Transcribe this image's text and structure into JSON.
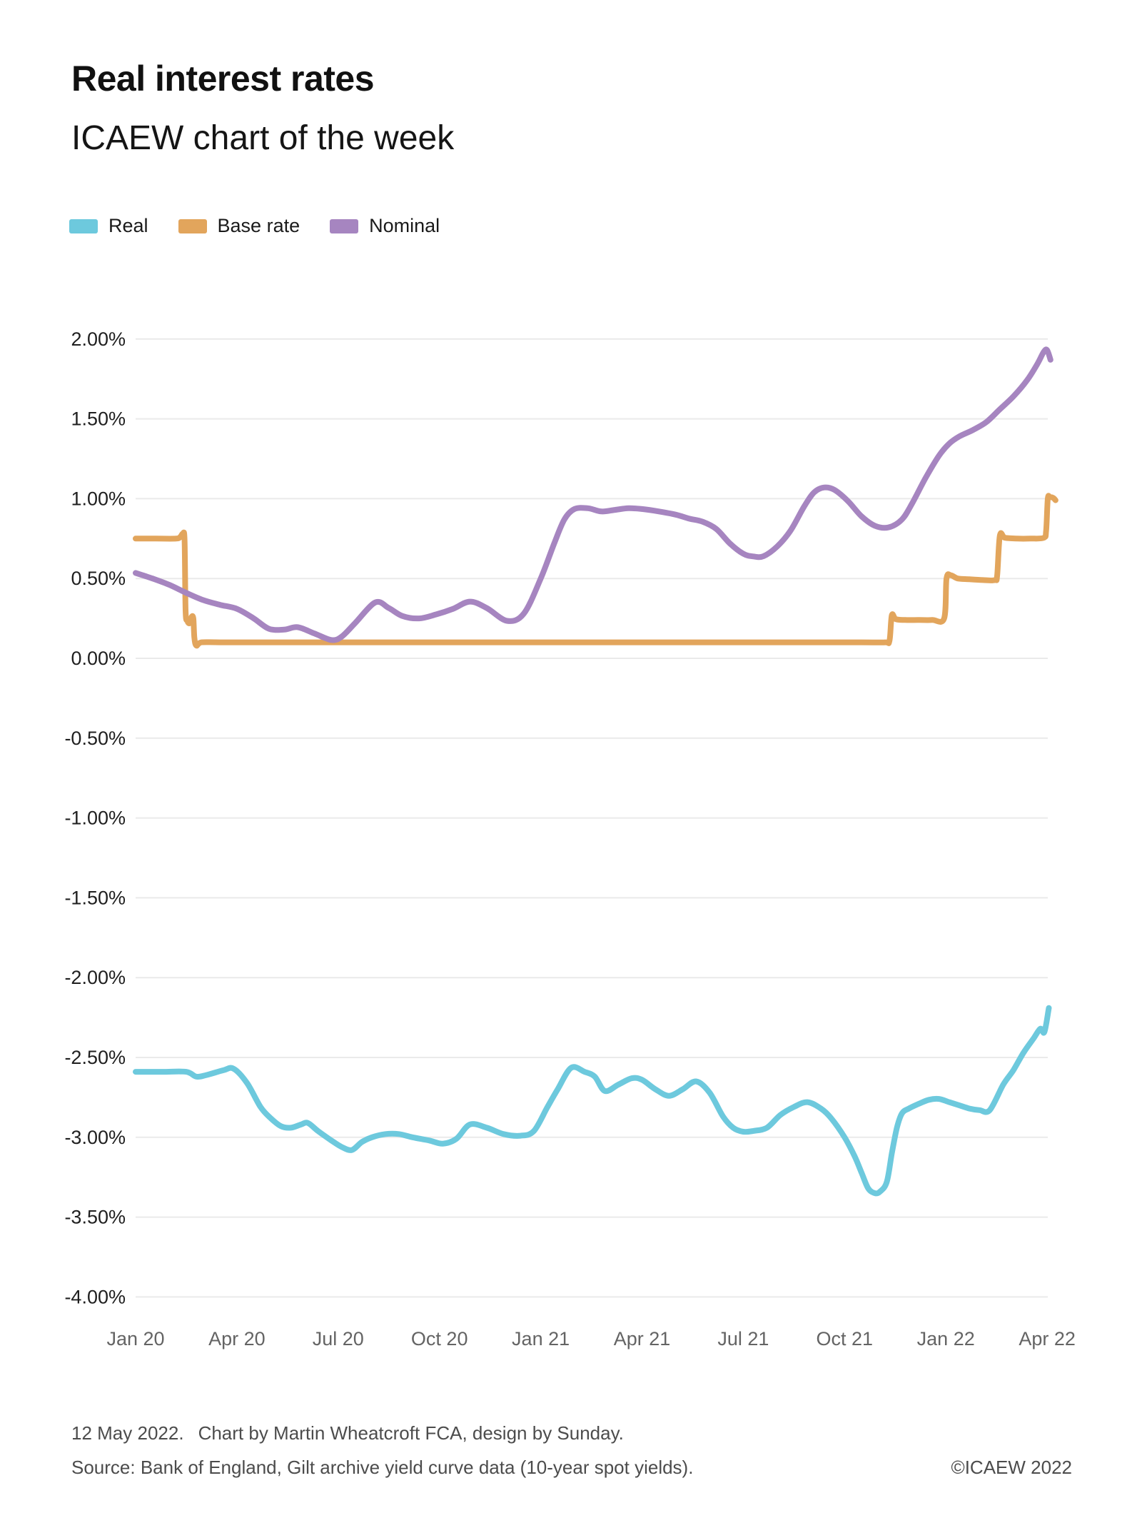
{
  "header": {
    "title": "Real interest rates",
    "subtitle": "ICAEW chart of the week"
  },
  "legend": {
    "items": [
      {
        "label": "Real",
        "color": "#6dc9dd"
      },
      {
        "label": "Base rate",
        "color": "#e2a55c"
      },
      {
        "label": "Nominal",
        "color": "#a685c0"
      }
    ]
  },
  "chart_data": {
    "type": "line",
    "title": "Real interest rates",
    "subtitle": "ICAEW chart of the week",
    "x_unit": "months since Jan 2020",
    "xlim": [
      0,
      27.35
    ],
    "ylim": [
      -4.0,
      2.0
    ],
    "grid": "horizontal",
    "legend_position": "top-left",
    "x_tick_positions": [
      0,
      3,
      6,
      9,
      12,
      15,
      18,
      21,
      24,
      27
    ],
    "x_tick_labels": [
      "Jan 20",
      "Apr 20",
      "Jul 20",
      "Oct 20",
      "Jan 21",
      "Apr 21",
      "Jul 21",
      "Oct 21",
      "Jan 22",
      "Apr 22"
    ],
    "y_tick_values": [
      2.0,
      1.5,
      1.0,
      0.5,
      0.0,
      -0.5,
      -1.0,
      -1.5,
      -2.0,
      -2.5,
      -3.0,
      -3.5,
      -4.0
    ],
    "y_tick_labels": [
      "2.00%",
      "1.50%",
      "1.00%",
      "0.50%",
      "0.00%",
      "-0.50%",
      "-1.00%",
      "-1.50%",
      "-2.00%",
      "-2.50%",
      "-3.00%",
      "-3.50%",
      "-4.00%"
    ],
    "series": [
      {
        "name": "Real",
        "color": "#6dc9dd",
        "points": [
          [
            0,
            -2.59
          ],
          [
            0.8,
            -2.59
          ],
          [
            1.5,
            -2.59
          ],
          [
            1.8,
            -2.62
          ],
          [
            2.1,
            -2.61
          ],
          [
            2.6,
            -2.58
          ],
          [
            2.9,
            -2.57
          ],
          [
            3.3,
            -2.66
          ],
          [
            3.7,
            -2.81
          ],
          [
            4.0,
            -2.88
          ],
          [
            4.3,
            -2.93
          ],
          [
            4.6,
            -2.94
          ],
          [
            4.9,
            -2.92
          ],
          [
            5.1,
            -2.91
          ],
          [
            5.4,
            -2.96
          ],
          [
            5.8,
            -3.02
          ],
          [
            6.1,
            -3.06
          ],
          [
            6.4,
            -3.08
          ],
          [
            6.7,
            -3.03
          ],
          [
            7.0,
            -3.0
          ],
          [
            7.4,
            -2.98
          ],
          [
            7.8,
            -2.98
          ],
          [
            8.2,
            -3.0
          ],
          [
            8.7,
            -3.02
          ],
          [
            9.1,
            -3.04
          ],
          [
            9.5,
            -3.01
          ],
          [
            9.9,
            -2.92
          ],
          [
            10.4,
            -2.94
          ],
          [
            10.9,
            -2.98
          ],
          [
            11.4,
            -2.99
          ],
          [
            11.8,
            -2.96
          ],
          [
            12.2,
            -2.81
          ],
          [
            12.5,
            -2.7
          ],
          [
            12.9,
            -2.565
          ],
          [
            13.3,
            -2.59
          ],
          [
            13.6,
            -2.62
          ],
          [
            13.9,
            -2.71
          ],
          [
            14.3,
            -2.67
          ],
          [
            14.7,
            -2.63
          ],
          [
            15.0,
            -2.64
          ],
          [
            15.4,
            -2.7
          ],
          [
            15.8,
            -2.74
          ],
          [
            16.2,
            -2.7
          ],
          [
            16.6,
            -2.65
          ],
          [
            17.0,
            -2.72
          ],
          [
            17.4,
            -2.87
          ],
          [
            17.7,
            -2.94
          ],
          [
            18.0,
            -2.965
          ],
          [
            18.3,
            -2.96
          ],
          [
            18.7,
            -2.94
          ],
          [
            19.1,
            -2.86
          ],
          [
            19.5,
            -2.81
          ],
          [
            19.9,
            -2.78
          ],
          [
            20.3,
            -2.82
          ],
          [
            20.6,
            -2.88
          ],
          [
            21.0,
            -3.0
          ],
          [
            21.3,
            -3.12
          ],
          [
            21.5,
            -3.22
          ],
          [
            21.7,
            -3.32
          ],
          [
            21.9,
            -3.35
          ],
          [
            22.05,
            -3.34
          ],
          [
            22.25,
            -3.28
          ],
          [
            22.4,
            -3.1
          ],
          [
            22.55,
            -2.94
          ],
          [
            22.7,
            -2.85
          ],
          [
            22.9,
            -2.82
          ],
          [
            23.2,
            -2.79
          ],
          [
            23.5,
            -2.765
          ],
          [
            23.8,
            -2.76
          ],
          [
            24.1,
            -2.78
          ],
          [
            24.4,
            -2.8
          ],
          [
            24.7,
            -2.82
          ],
          [
            25.0,
            -2.83
          ],
          [
            25.3,
            -2.83
          ],
          [
            25.7,
            -2.67
          ],
          [
            26.0,
            -2.58
          ],
          [
            26.3,
            -2.47
          ],
          [
            26.6,
            -2.38
          ],
          [
            26.8,
            -2.32
          ],
          [
            26.92,
            -2.34
          ],
          [
            27.05,
            -2.19
          ]
        ]
      },
      {
        "name": "Base rate",
        "color": "#e2a55c",
        "points": [
          [
            0,
            0.75
          ],
          [
            0.6,
            0.75
          ],
          [
            1.2,
            0.75
          ],
          [
            1.32,
            0.76
          ],
          [
            1.4,
            0.78
          ],
          [
            1.45,
            0.74
          ],
          [
            1.48,
            0.3
          ],
          [
            1.53,
            0.235
          ],
          [
            1.6,
            0.22
          ],
          [
            1.66,
            0.26
          ],
          [
            1.71,
            0.25
          ],
          [
            1.74,
            0.13
          ],
          [
            1.8,
            0.08
          ],
          [
            1.95,
            0.1
          ],
          [
            2.5,
            0.1
          ],
          [
            4,
            0.1
          ],
          [
            6,
            0.1
          ],
          [
            8,
            0.1
          ],
          [
            10,
            0.1
          ],
          [
            12,
            0.1
          ],
          [
            14,
            0.1
          ],
          [
            16,
            0.1
          ],
          [
            18,
            0.1
          ],
          [
            20,
            0.1
          ],
          [
            21.5,
            0.1
          ],
          [
            22.2,
            0.1
          ],
          [
            22.33,
            0.11
          ],
          [
            22.4,
            0.27
          ],
          [
            22.52,
            0.245
          ],
          [
            22.8,
            0.24
          ],
          [
            23.2,
            0.24
          ],
          [
            23.6,
            0.24
          ],
          [
            23.95,
            0.25
          ],
          [
            24.02,
            0.5
          ],
          [
            24.15,
            0.52
          ],
          [
            24.35,
            0.5
          ],
          [
            24.7,
            0.495
          ],
          [
            25.1,
            0.49
          ],
          [
            25.45,
            0.49
          ],
          [
            25.52,
            0.52
          ],
          [
            25.6,
            0.77
          ],
          [
            25.75,
            0.755
          ],
          [
            26.1,
            0.75
          ],
          [
            26.5,
            0.75
          ],
          [
            26.9,
            0.755
          ],
          [
            26.97,
            0.8
          ],
          [
            27.02,
            1.0
          ],
          [
            27.08,
            1.01
          ],
          [
            27.18,
            1.005
          ],
          [
            27.25,
            0.99
          ]
        ]
      },
      {
        "name": "Nominal",
        "color": "#a685c0",
        "points": [
          [
            0,
            0.535
          ],
          [
            0.5,
            0.5
          ],
          [
            1.0,
            0.46
          ],
          [
            1.5,
            0.41
          ],
          [
            2.0,
            0.365
          ],
          [
            2.5,
            0.335
          ],
          [
            3.0,
            0.31
          ],
          [
            3.5,
            0.25
          ],
          [
            3.95,
            0.185
          ],
          [
            4.4,
            0.18
          ],
          [
            4.8,
            0.195
          ],
          [
            5.3,
            0.155
          ],
          [
            5.8,
            0.115
          ],
          [
            6.1,
            0.135
          ],
          [
            6.5,
            0.22
          ],
          [
            7.1,
            0.35
          ],
          [
            7.5,
            0.315
          ],
          [
            7.9,
            0.265
          ],
          [
            8.4,
            0.25
          ],
          [
            8.9,
            0.275
          ],
          [
            9.4,
            0.31
          ],
          [
            9.9,
            0.355
          ],
          [
            10.4,
            0.315
          ],
          [
            11.0,
            0.235
          ],
          [
            11.5,
            0.28
          ],
          [
            12.0,
            0.5
          ],
          [
            12.4,
            0.72
          ],
          [
            12.7,
            0.87
          ],
          [
            13.0,
            0.935
          ],
          [
            13.4,
            0.94
          ],
          [
            13.8,
            0.92
          ],
          [
            14.2,
            0.93
          ],
          [
            14.6,
            0.94
          ],
          [
            15.0,
            0.935
          ],
          [
            15.5,
            0.92
          ],
          [
            16.0,
            0.9
          ],
          [
            16.4,
            0.875
          ],
          [
            16.8,
            0.855
          ],
          [
            17.2,
            0.81
          ],
          [
            17.6,
            0.72
          ],
          [
            18.0,
            0.655
          ],
          [
            18.3,
            0.638
          ],
          [
            18.6,
            0.64
          ],
          [
            19.0,
            0.7
          ],
          [
            19.4,
            0.8
          ],
          [
            19.8,
            0.95
          ],
          [
            20.1,
            1.04
          ],
          [
            20.4,
            1.07
          ],
          [
            20.7,
            1.055
          ],
          [
            21.1,
            0.985
          ],
          [
            21.5,
            0.89
          ],
          [
            21.9,
            0.83
          ],
          [
            22.3,
            0.82
          ],
          [
            22.7,
            0.87
          ],
          [
            23.0,
            0.97
          ],
          [
            23.4,
            1.13
          ],
          [
            23.8,
            1.27
          ],
          [
            24.1,
            1.345
          ],
          [
            24.4,
            1.39
          ],
          [
            24.8,
            1.43
          ],
          [
            25.2,
            1.48
          ],
          [
            25.6,
            1.56
          ],
          [
            26.0,
            1.64
          ],
          [
            26.4,
            1.74
          ],
          [
            26.7,
            1.84
          ],
          [
            26.9,
            1.92
          ],
          [
            27.0,
            1.93
          ],
          [
            27.1,
            1.87
          ]
        ]
      }
    ]
  },
  "footer": {
    "date": "12 May 2022.",
    "credit": "Chart by Martin Wheatcroft FCA, design by Sunday.",
    "source": "Source: Bank of England, Gilt archive yield curve data (10-year spot yields).",
    "copyright": "©ICAEW 2022"
  }
}
